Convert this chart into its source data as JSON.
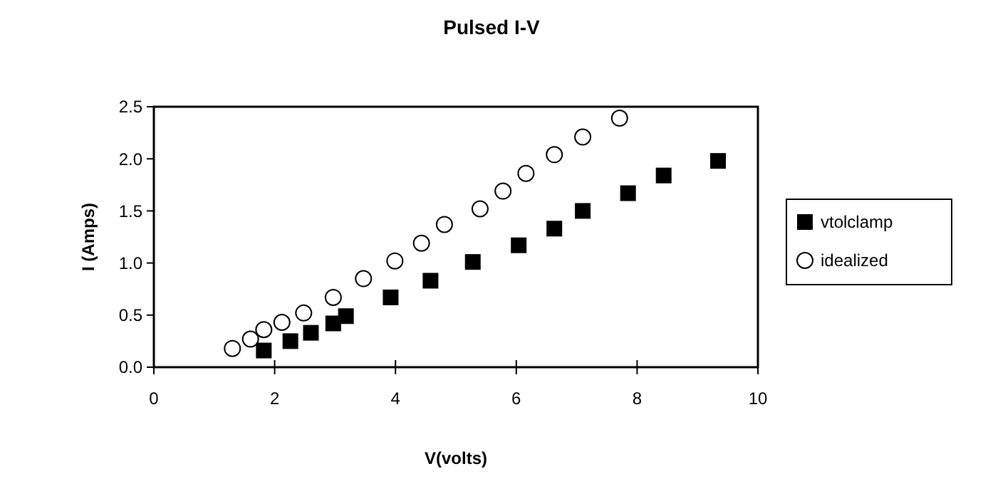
{
  "chart_data": {
    "type": "scatter",
    "title": "Pulsed I-V",
    "xlabel": "V(volts)",
    "ylabel": "I (Amps)",
    "xlim": [
      0,
      10
    ],
    "xticks": [
      0,
      2,
      4,
      6,
      8,
      10
    ],
    "ylim": [
      0,
      2.5
    ],
    "yticks": [
      {
        "value": 0,
        "label": "0.0"
      },
      {
        "value": 0.5,
        "label": "0.5"
      },
      {
        "value": 1,
        "label": "1.0"
      },
      {
        "value": 1.5,
        "label": "1.5"
      },
      {
        "value": 2,
        "label": "2.0"
      },
      {
        "value": 2.5,
        "label": "2.5"
      }
    ],
    "grid": false,
    "legend": "right",
    "series": [
      {
        "name": "vtolclamp",
        "color": "#000000",
        "marker": "square",
        "x": [
          1.82,
          2.26,
          2.6,
          2.97,
          3.18,
          3.92,
          4.58,
          5.28,
          6.04,
          6.63,
          7.1,
          7.85,
          8.44,
          9.34
        ],
        "values": [
          0.16,
          0.25,
          0.33,
          0.42,
          0.49,
          0.67,
          0.83,
          1.01,
          1.17,
          1.33,
          1.5,
          1.67,
          1.84,
          1.98
        ]
      },
      {
        "name": "idealized",
        "color": "#000000",
        "marker": "circle",
        "x": [
          1.3,
          1.6,
          1.82,
          2.12,
          2.48,
          2.97,
          3.47,
          3.99,
          4.43,
          4.81,
          5.4,
          5.78,
          6.16,
          6.63,
          7.1,
          7.71
        ],
        "values": [
          0.18,
          0.27,
          0.36,
          0.43,
          0.52,
          0.67,
          0.85,
          1.02,
          1.19,
          1.37,
          1.52,
          1.69,
          1.86,
          2.04,
          2.21,
          2.39
        ]
      }
    ]
  }
}
